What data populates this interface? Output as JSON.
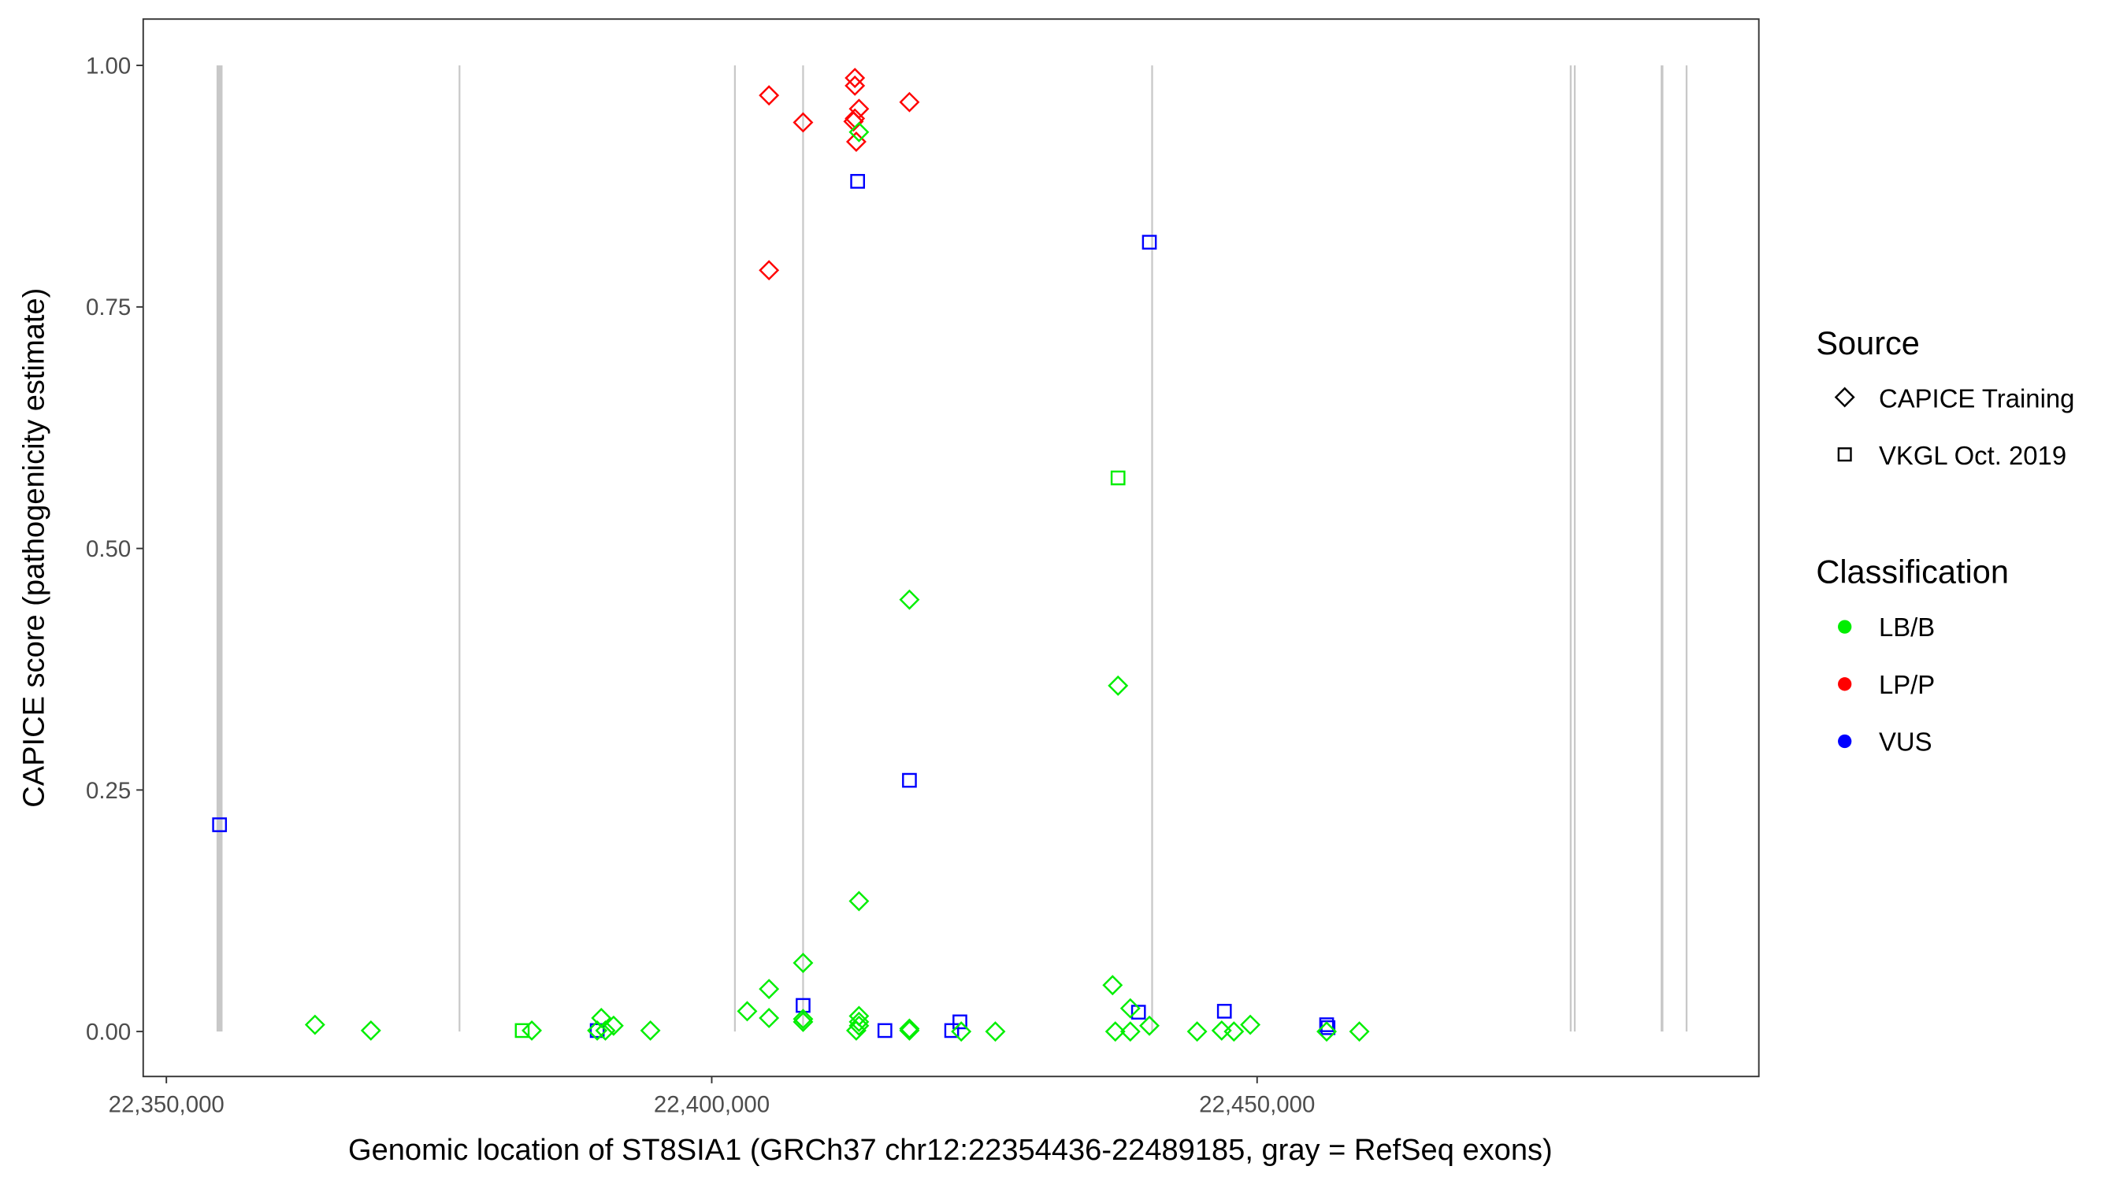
{
  "chart_data": {
    "type": "scatter",
    "xlabel": "Genomic location of ST8SIA1 (GRCh37 chr12:22354436-22489185, gray = RefSeq exons)",
    "ylabel": "CAPICE score (pathogenicity estimate)",
    "xlim": [
      22347900,
      22495900
    ],
    "ylim": [
      -0.046,
      1.046
    ],
    "x_ticks": [
      22350000,
      22400000,
      22450000
    ],
    "x_tick_labels": [
      "22,350,000",
      "22,400,000",
      "22,450,000"
    ],
    "y_ticks": [
      0,
      0.25,
      0.5,
      0.75,
      1.0
    ],
    "y_tick_labels": [
      "0.00",
      "0.25",
      "0.50",
      "0.75",
      "1.00"
    ],
    "grid": false,
    "legend_placement": "right",
    "legends": {
      "source": {
        "title": "Source",
        "items": [
          {
            "label": "CAPICE Training",
            "shape": "diamond"
          },
          {
            "label": "VKGL Oct. 2019",
            "shape": "square"
          }
        ]
      },
      "classification": {
        "title": "Classification",
        "items": [
          {
            "label": "LB/B",
            "color": "#00ee00"
          },
          {
            "label": "LP/P",
            "color": "#ff0000"
          },
          {
            "label": "VUS",
            "color": "#0000ff"
          }
        ]
      }
    },
    "exons": [
      {
        "start": 22354600,
        "end": 22355150
      },
      {
        "start": 22376875,
        "end": 22376875
      },
      {
        "start": 22402125,
        "end": 22402125
      },
      {
        "start": 22408375,
        "end": 22408375
      },
      {
        "start": 22440375,
        "end": 22440375
      },
      {
        "start": 22478750,
        "end": 22478750
      },
      {
        "start": 22479125,
        "end": 22479125
      },
      {
        "start": 22487000,
        "end": 22487250
      },
      {
        "start": 22489375,
        "end": 22489375
      }
    ],
    "points": [
      {
        "x": 22405250,
        "y": 0.969,
        "source": "CAPICE Training",
        "class": "LP/P"
      },
      {
        "x": 22408375,
        "y": 0.941,
        "source": "CAPICE Training",
        "class": "LP/P"
      },
      {
        "x": 22413125,
        "y": 0.987,
        "source": "CAPICE Training",
        "class": "LP/P"
      },
      {
        "x": 22413125,
        "y": 0.979,
        "source": "CAPICE Training",
        "class": "LP/P"
      },
      {
        "x": 22413500,
        "y": 0.955,
        "source": "CAPICE Training",
        "class": "LP/P"
      },
      {
        "x": 22413125,
        "y": 0.945,
        "source": "CAPICE Training",
        "class": "LP/P"
      },
      {
        "x": 22413000,
        "y": 0.942,
        "source": "CAPICE Training",
        "class": "LP/P"
      },
      {
        "x": 22413250,
        "y": 0.921,
        "source": "CAPICE Training",
        "class": "LP/P"
      },
      {
        "x": 22418125,
        "y": 0.962,
        "source": "CAPICE Training",
        "class": "LP/P"
      },
      {
        "x": 22405250,
        "y": 0.788,
        "source": "CAPICE Training",
        "class": "LP/P"
      },
      {
        "x": 22413500,
        "y": 0.931,
        "source": "CAPICE Training",
        "class": "LB/B"
      },
      {
        "x": 22413375,
        "y": 0.88,
        "source": "VKGL Oct. 2019",
        "class": "VUS"
      },
      {
        "x": 22440125,
        "y": 0.817,
        "source": "VKGL Oct. 2019",
        "class": "VUS"
      },
      {
        "x": 22354875,
        "y": 0.214,
        "source": "VKGL Oct. 2019",
        "class": "VUS"
      },
      {
        "x": 22418125,
        "y": 0.26,
        "source": "VKGL Oct. 2019",
        "class": "VUS"
      },
      {
        "x": 22408375,
        "y": 0.027,
        "source": "VKGL Oct. 2019",
        "class": "VUS"
      },
      {
        "x": 22415875,
        "y": 0.001,
        "source": "VKGL Oct. 2019",
        "class": "VUS"
      },
      {
        "x": 22422000,
        "y": 0.001,
        "source": "VKGL Oct. 2019",
        "class": "VUS"
      },
      {
        "x": 22422750,
        "y": 0.01,
        "source": "VKGL Oct. 2019",
        "class": "VUS"
      },
      {
        "x": 22439125,
        "y": 0.02,
        "source": "VKGL Oct. 2019",
        "class": "VUS"
      },
      {
        "x": 22447000,
        "y": 0.021,
        "source": "VKGL Oct. 2019",
        "class": "VUS"
      },
      {
        "x": 22389500,
        "y": 0.001,
        "source": "VKGL Oct. 2019",
        "class": "VUS"
      },
      {
        "x": 22456375,
        "y": 0.007,
        "source": "VKGL Oct. 2019",
        "class": "VUS"
      },
      {
        "x": 22456500,
        "y": 0.004,
        "source": "VKGL Oct. 2019",
        "class": "VUS"
      },
      {
        "x": 22437250,
        "y": 0.573,
        "source": "VKGL Oct. 2019",
        "class": "LB/B"
      },
      {
        "x": 22382625,
        "y": 0.001,
        "source": "VKGL Oct. 2019",
        "class": "LB/B"
      },
      {
        "x": 22418125,
        "y": 0.447,
        "source": "CAPICE Training",
        "class": "LB/B"
      },
      {
        "x": 22437250,
        "y": 0.358,
        "source": "CAPICE Training",
        "class": "LB/B"
      },
      {
        "x": 22413500,
        "y": 0.135,
        "source": "CAPICE Training",
        "class": "LB/B"
      },
      {
        "x": 22408375,
        "y": 0.071,
        "source": "CAPICE Training",
        "class": "LB/B"
      },
      {
        "x": 22405250,
        "y": 0.044,
        "source": "CAPICE Training",
        "class": "LB/B"
      },
      {
        "x": 22436750,
        "y": 0.048,
        "source": "CAPICE Training",
        "class": "LB/B"
      },
      {
        "x": 22403250,
        "y": 0.021,
        "source": "CAPICE Training",
        "class": "LB/B"
      },
      {
        "x": 22405250,
        "y": 0.014,
        "source": "CAPICE Training",
        "class": "LB/B"
      },
      {
        "x": 22408375,
        "y": 0.013,
        "source": "CAPICE Training",
        "class": "LB/B"
      },
      {
        "x": 22408375,
        "y": 0.01,
        "source": "CAPICE Training",
        "class": "LB/B"
      },
      {
        "x": 22413500,
        "y": 0.016,
        "source": "CAPICE Training",
        "class": "LB/B"
      },
      {
        "x": 22413500,
        "y": 0.01,
        "source": "CAPICE Training",
        "class": "LB/B"
      },
      {
        "x": 22413500,
        "y": 0.006,
        "source": "CAPICE Training",
        "class": "LB/B"
      },
      {
        "x": 22413250,
        "y": 0.001,
        "source": "CAPICE Training",
        "class": "LB/B"
      },
      {
        "x": 22418125,
        "y": 0.001,
        "source": "CAPICE Training",
        "class": "LB/B"
      },
      {
        "x": 22418125,
        "y": 0.003,
        "source": "CAPICE Training",
        "class": "LB/B"
      },
      {
        "x": 22422875,
        "y": 0.0,
        "source": "CAPICE Training",
        "class": "LB/B"
      },
      {
        "x": 22426000,
        "y": 0.0,
        "source": "CAPICE Training",
        "class": "LB/B"
      },
      {
        "x": 22389875,
        "y": 0.014,
        "source": "CAPICE Training",
        "class": "LB/B"
      },
      {
        "x": 22390250,
        "y": 0.001,
        "source": "CAPICE Training",
        "class": "LB/B"
      },
      {
        "x": 22391000,
        "y": 0.006,
        "source": "CAPICE Training",
        "class": "LB/B"
      },
      {
        "x": 22389500,
        "y": 0.001,
        "source": "CAPICE Training",
        "class": "LB/B"
      },
      {
        "x": 22383500,
        "y": 0.001,
        "source": "CAPICE Training",
        "class": "LB/B"
      },
      {
        "x": 22394375,
        "y": 0.001,
        "source": "CAPICE Training",
        "class": "LB/B"
      },
      {
        "x": 22363625,
        "y": 0.007,
        "source": "CAPICE Training",
        "class": "LB/B"
      },
      {
        "x": 22368750,
        "y": 0.001,
        "source": "CAPICE Training",
        "class": "LB/B"
      },
      {
        "x": 22437000,
        "y": 0.0,
        "source": "CAPICE Training",
        "class": "LB/B"
      },
      {
        "x": 22438375,
        "y": 0.024,
        "source": "CAPICE Training",
        "class": "LB/B"
      },
      {
        "x": 22438375,
        "y": 0.0,
        "source": "CAPICE Training",
        "class": "LB/B"
      },
      {
        "x": 22440125,
        "y": 0.006,
        "source": "CAPICE Training",
        "class": "LB/B"
      },
      {
        "x": 22444500,
        "y": 0.0,
        "source": "CAPICE Training",
        "class": "LB/B"
      },
      {
        "x": 22446750,
        "y": 0.001,
        "source": "CAPICE Training",
        "class": "LB/B"
      },
      {
        "x": 22447875,
        "y": 0.0,
        "source": "CAPICE Training",
        "class": "LB/B"
      },
      {
        "x": 22449375,
        "y": 0.007,
        "source": "CAPICE Training",
        "class": "LB/B"
      },
      {
        "x": 22456375,
        "y": 0.0,
        "source": "CAPICE Training",
        "class": "LB/B"
      },
      {
        "x": 22459375,
        "y": 0.0,
        "source": "CAPICE Training",
        "class": "LB/B"
      }
    ]
  }
}
